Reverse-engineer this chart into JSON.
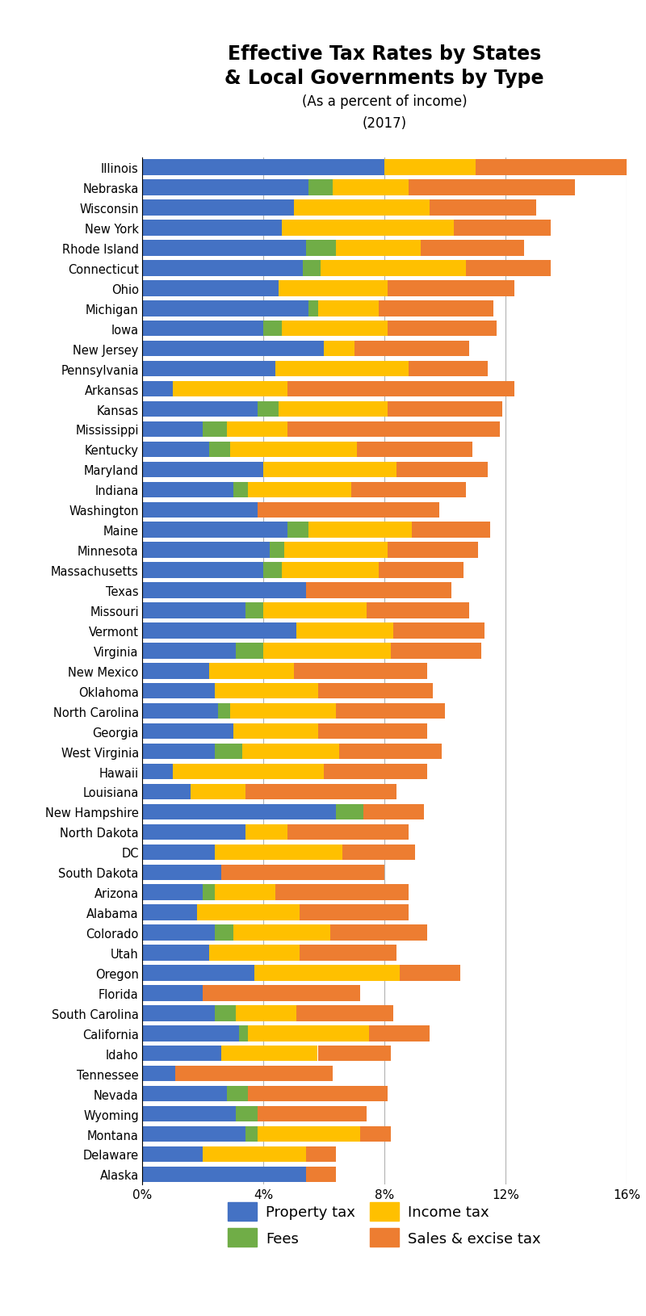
{
  "title_line1": "Effective Tax Rates by States",
  "title_line2": "& Local Governments by Type",
  "subtitle": "(As a percent of income)",
  "year": "(2017)",
  "states": [
    "Illinois",
    "Nebraska",
    "Wisconsin",
    "New York",
    "Rhode Island",
    "Connecticut",
    "Ohio",
    "Michigan",
    "Iowa",
    "New Jersey",
    "Pennsylvania",
    "Arkansas",
    "Kansas",
    "Mississippi",
    "Kentucky",
    "Maryland",
    "Indiana",
    "Washington",
    "Maine",
    "Minnesota",
    "Massachusetts",
    "Texas",
    "Missouri",
    "Vermont",
    "Virginia",
    "New Mexico",
    "Oklahoma",
    "North Carolina",
    "Georgia",
    "West Virginia",
    "Hawaii",
    "Louisiana",
    "New Hampshire",
    "North Dakota",
    "DC",
    "South Dakota",
    "Arizona",
    "Alabama",
    "Colorado",
    "Utah",
    "Oregon",
    "Florida",
    "South Carolina",
    "California",
    "Idaho",
    "Tennessee",
    "Nevada",
    "Wyoming",
    "Montana",
    "Delaware",
    "Alaska"
  ],
  "property_tax": [
    8.0,
    5.5,
    5.0,
    4.6,
    5.4,
    5.3,
    4.5,
    5.5,
    4.0,
    6.0,
    4.4,
    1.0,
    3.8,
    2.0,
    2.2,
    4.0,
    3.0,
    3.8,
    4.8,
    4.2,
    4.0,
    5.4,
    3.4,
    5.1,
    3.1,
    2.2,
    2.4,
    2.5,
    3.0,
    2.4,
    1.0,
    1.6,
    6.4,
    3.4,
    2.4,
    2.6,
    2.0,
    1.8,
    2.4,
    2.2,
    3.7,
    2.0,
    2.4,
    3.2,
    2.6,
    1.1,
    2.8,
    3.1,
    3.4,
    2.0,
    5.4
  ],
  "fees": [
    0.0,
    0.8,
    0.0,
    0.0,
    1.0,
    0.6,
    0.0,
    0.3,
    0.6,
    0.0,
    0.0,
    0.0,
    0.7,
    0.8,
    0.7,
    0.0,
    0.5,
    0.0,
    0.7,
    0.5,
    0.6,
    0.0,
    0.6,
    0.0,
    0.9,
    0.0,
    0.0,
    0.4,
    0.0,
    0.9,
    0.0,
    0.0,
    0.9,
    0.0,
    0.0,
    0.0,
    0.4,
    0.0,
    0.6,
    0.0,
    0.0,
    0.0,
    0.7,
    0.3,
    0.0,
    0.0,
    0.7,
    0.7,
    0.4,
    0.0,
    0.0
  ],
  "income_tax": [
    3.0,
    2.5,
    4.5,
    5.7,
    2.8,
    4.8,
    3.6,
    2.0,
    3.5,
    1.0,
    4.4,
    3.8,
    3.6,
    2.0,
    4.2,
    4.4,
    3.4,
    0.0,
    3.4,
    3.4,
    3.2,
    0.0,
    3.4,
    3.2,
    4.2,
    2.8,
    3.4,
    3.5,
    2.8,
    3.2,
    5.0,
    1.8,
    0.0,
    1.4,
    4.2,
    0.0,
    2.0,
    3.4,
    3.2,
    3.0,
    4.8,
    0.0,
    2.0,
    4.0,
    3.2,
    0.0,
    0.0,
    0.0,
    3.4,
    3.4,
    0.0
  ],
  "sales_excise_tax": [
    5.2,
    5.5,
    3.5,
    3.2,
    3.4,
    2.8,
    4.2,
    3.8,
    3.6,
    3.8,
    2.6,
    7.5,
    3.8,
    7.0,
    3.8,
    3.0,
    3.8,
    6.0,
    2.6,
    3.0,
    2.8,
    4.8,
    3.4,
    3.0,
    3.0,
    4.4,
    3.8,
    3.6,
    3.6,
    3.4,
    3.4,
    5.0,
    2.0,
    4.0,
    2.4,
    5.4,
    4.4,
    3.6,
    3.2,
    3.2,
    2.0,
    5.2,
    3.2,
    2.0,
    2.4,
    5.2,
    4.6,
    3.6,
    1.0,
    1.0,
    1.0
  ],
  "colors": {
    "property_tax": "#4472C4",
    "fees": "#70AD47",
    "income_tax": "#FFC000",
    "sales_excise_tax": "#ED7D31"
  },
  "xlim": [
    0,
    16
  ],
  "xtick_positions": [
    0,
    4,
    8,
    12,
    16
  ],
  "xtick_labels": [
    "0%",
    "4%",
    "8%",
    "12%",
    "16%"
  ],
  "figsize": [
    8.0,
    16.31
  ],
  "dpi": 100
}
